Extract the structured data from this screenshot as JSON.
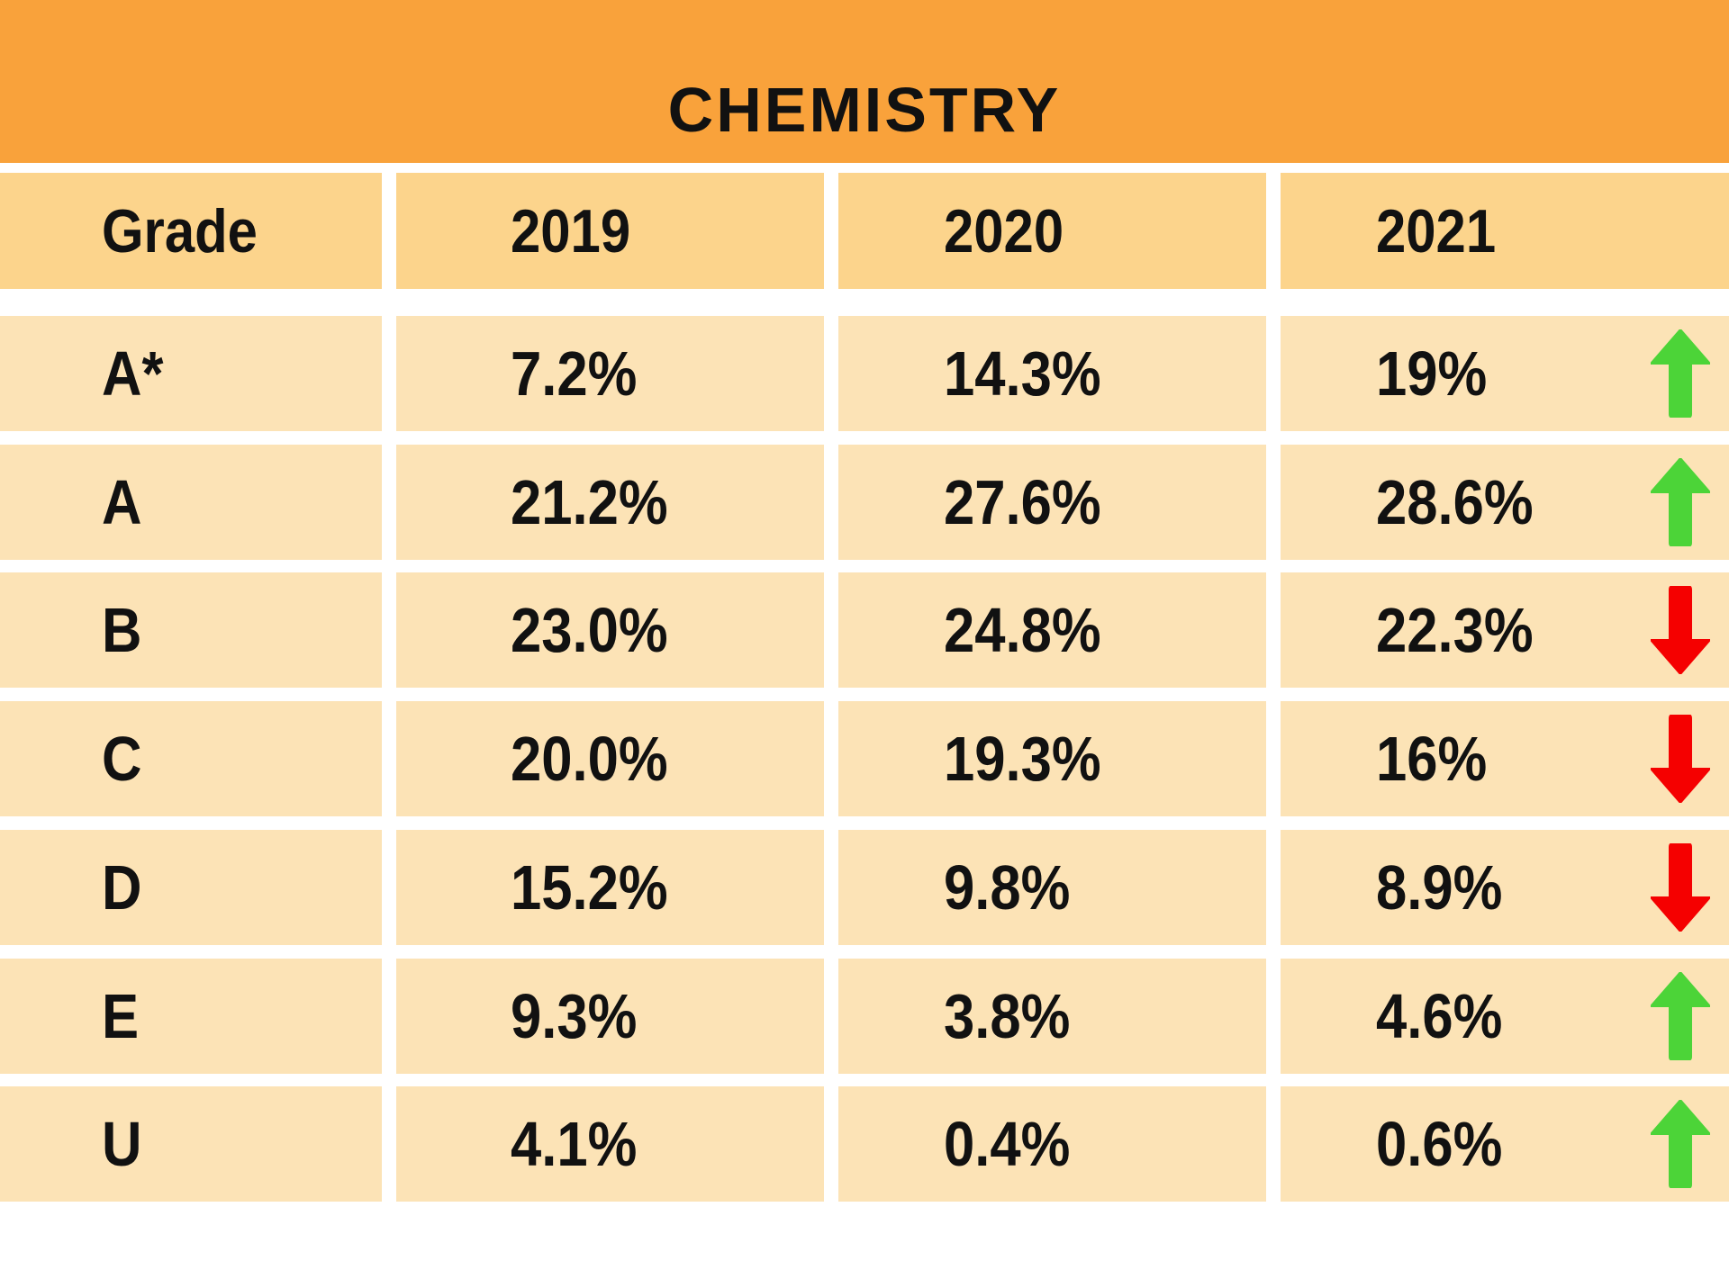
{
  "title": "CHEMISTRY",
  "columns": [
    "Grade",
    "2019",
    "2020",
    "2021"
  ],
  "rows": [
    {
      "grade": "A*",
      "y2019": "7.2%",
      "y2020": "14.3%",
      "y2021": "19%",
      "trend": "up"
    },
    {
      "grade": "A",
      "y2019": "21.2%",
      "y2020": "27.6%",
      "y2021": "28.6%",
      "trend": "up"
    },
    {
      "grade": "B",
      "y2019": "23.0%",
      "y2020": "24.8%",
      "y2021": "22.3%",
      "trend": "down"
    },
    {
      "grade": "C",
      "y2019": "20.0%",
      "y2020": "19.3%",
      "y2021": "16%",
      "trend": "down"
    },
    {
      "grade": "D",
      "y2019": "15.2%",
      "y2020": "9.8%",
      "y2021": "8.9%",
      "trend": "down"
    },
    {
      "grade": "E",
      "y2019": "9.3%",
      "y2020": "3.8%",
      "y2021": "4.6%",
      "trend": "up"
    },
    {
      "grade": "U",
      "y2019": "4.1%",
      "y2020": "0.4%",
      "y2021": "0.6%",
      "trend": "up"
    }
  ],
  "colors": {
    "title_bg": "#F9A23B",
    "header_bg": "#FCD48C",
    "row_bg": "#FCE3B6",
    "up": "#4CD438",
    "down": "#F50000"
  }
}
